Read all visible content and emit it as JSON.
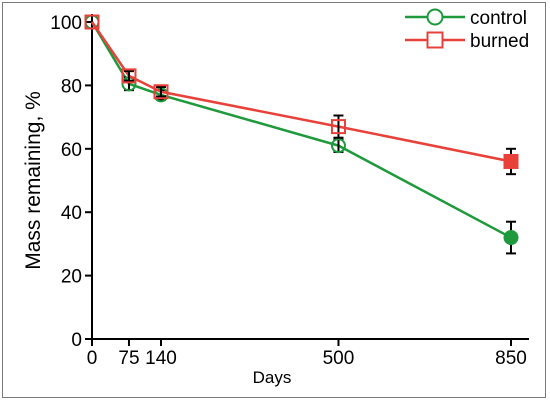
{
  "chart_data": {
    "type": "line",
    "xlabel": "Days",
    "ylabel": "Mass remaining, %",
    "xlim": [
      0,
      850
    ],
    "ylim": [
      0,
      100
    ],
    "x_ticks": [
      0,
      75,
      140,
      500,
      850
    ],
    "y_ticks": [
      0,
      20,
      40,
      60,
      80,
      100
    ],
    "grid": false,
    "legend_position": "top-right",
    "series": [
      {
        "name": "control",
        "color": "#1e9a3c",
        "marker": "circle",
        "points": [
          {
            "x": 0,
            "y": 100,
            "err": 0,
            "filled": false
          },
          {
            "x": 75,
            "y": 80.5,
            "err": 2.0,
            "filled": false
          },
          {
            "x": 140,
            "y": 77,
            "err": 1.5,
            "filled": false
          },
          {
            "x": 500,
            "y": 61,
            "err": 2.0,
            "filled": false
          },
          {
            "x": 850,
            "y": 32,
            "err": 5.0,
            "filled": true
          }
        ]
      },
      {
        "name": "burned",
        "color": "#e8413a",
        "marker": "square",
        "points": [
          {
            "x": 0,
            "y": 100,
            "err": 0,
            "filled": false
          },
          {
            "x": 75,
            "y": 83,
            "err": 1.5,
            "filled": false
          },
          {
            "x": 140,
            "y": 78,
            "err": 1.5,
            "filled": false
          },
          {
            "x": 500,
            "y": 67,
            "err": 3.5,
            "filled": false
          },
          {
            "x": 850,
            "y": 56,
            "err": 4.0,
            "filled": true
          }
        ]
      }
    ]
  }
}
